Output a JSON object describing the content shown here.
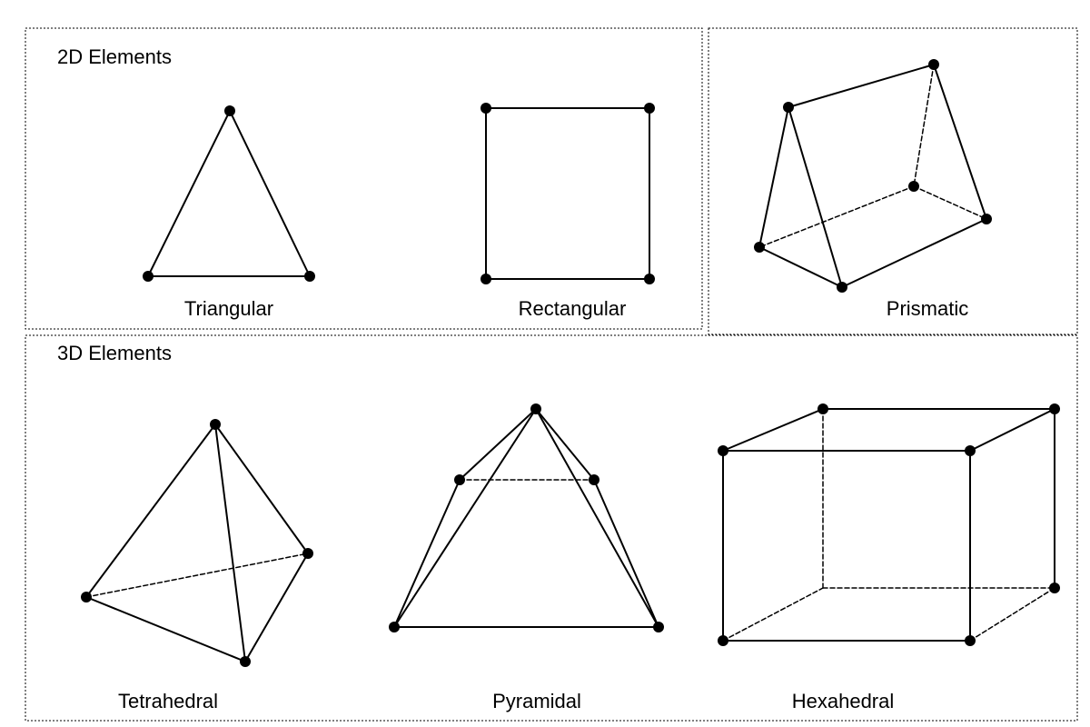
{
  "groups": {
    "two_d": {
      "label": "2D Elements"
    },
    "three_d": {
      "label": "3D Elements"
    }
  },
  "shapes": {
    "triangular": {
      "label": "Triangular",
      "nodes": 3
    },
    "rectangular": {
      "label": "Rectangular",
      "nodes": 4
    },
    "prismatic": {
      "label": "Prismatic",
      "nodes": 6
    },
    "tetrahedral": {
      "label": "Tetrahedral",
      "nodes": 4
    },
    "pyramidal": {
      "label": "Pyramidal",
      "nodes": 5
    },
    "hexahedral": {
      "label": "Hexahedral",
      "nodes": 8
    }
  },
  "line_style": {
    "visible_edge": "solid",
    "hidden_edge": "dashed"
  },
  "colors": {
    "ink": "#000000",
    "background": "#ffffff"
  }
}
